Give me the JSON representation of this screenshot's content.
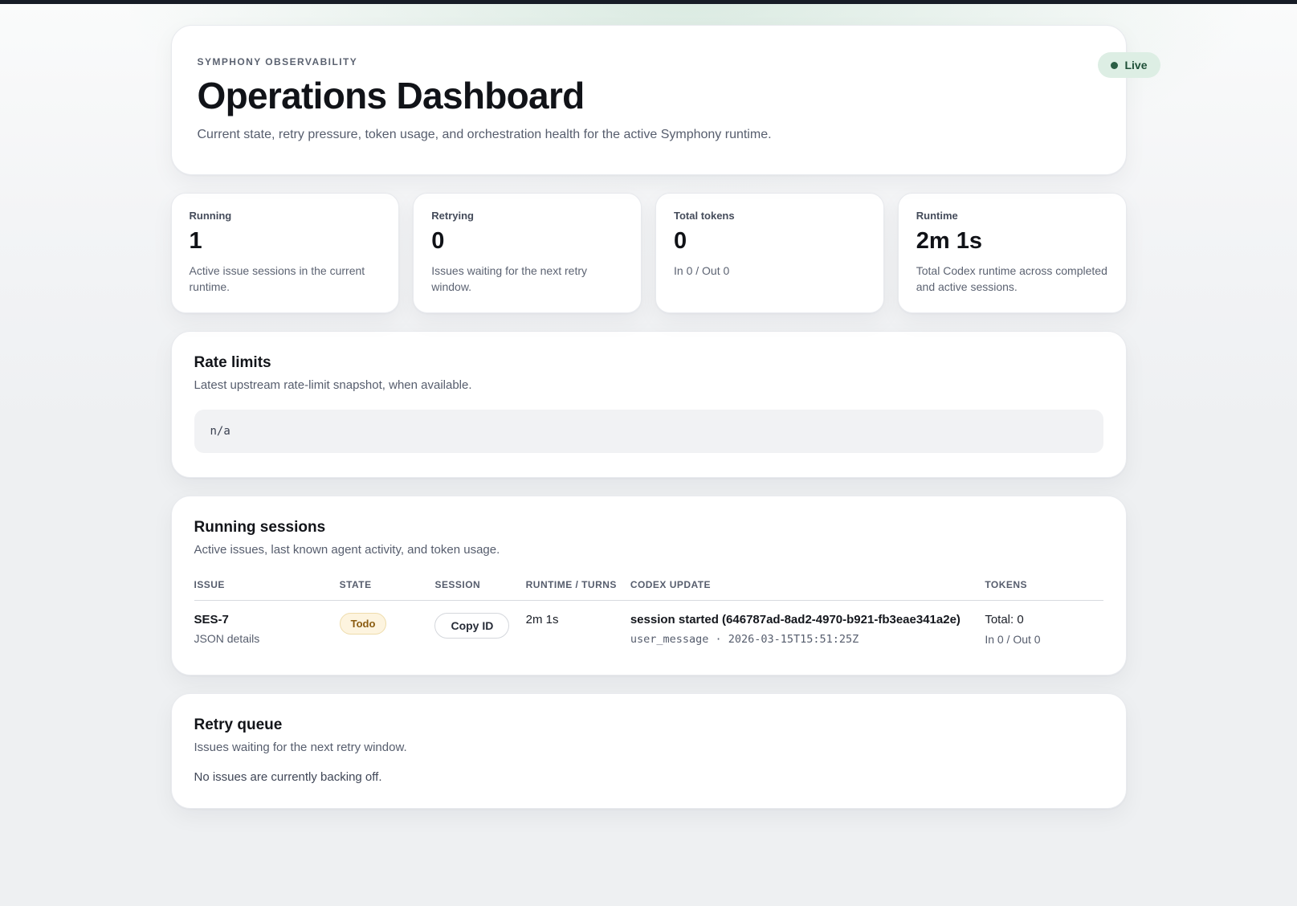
{
  "page": {
    "eyebrow": "SYMPHONY OBSERVABILITY",
    "title": "Operations Dashboard",
    "subtitle": "Current state, retry pressure, token usage, and orchestration health for the active Symphony runtime.",
    "live_badge": "Live"
  },
  "stats": [
    {
      "label": "Running",
      "value": "1",
      "desc": "Active issue sessions in the current runtime."
    },
    {
      "label": "Retrying",
      "value": "0",
      "desc": "Issues waiting for the next retry window."
    },
    {
      "label": "Total tokens",
      "value": "0",
      "desc": "In 0 / Out 0"
    },
    {
      "label": "Runtime",
      "value": "2m 1s",
      "desc": "Total Codex runtime across completed and active sessions."
    }
  ],
  "rate_limits": {
    "title": "Rate limits",
    "subtitle": "Latest upstream rate-limit snapshot, when available.",
    "value": "n/a"
  },
  "sessions": {
    "title": "Running sessions",
    "subtitle": "Active issues, last known agent activity, and token usage.",
    "columns": {
      "issue": "ISSUE",
      "state": "STATE",
      "session": "SESSION",
      "runtime": "RUNTIME / TURNS",
      "codex": "CODEX UPDATE",
      "tokens": "TOKENS"
    },
    "rows": [
      {
        "issue": "SES-7",
        "details_label": "JSON details",
        "state": "Todo",
        "session_button": "Copy ID",
        "runtime": "2m 1s",
        "codex_title": "session started (646787ad-8ad2-4970-b921-fb3eae341a2e)",
        "codex_meta": "user_message · 2026-03-15T15:51:25Z",
        "tokens_total": "Total: 0",
        "tokens_detail": "In 0 / Out 0"
      }
    ]
  },
  "retry_queue": {
    "title": "Retry queue",
    "subtitle": "Issues waiting for the next retry window.",
    "empty_message": "No issues are currently backing off."
  },
  "colors": {
    "live_bg": "#ddeee4",
    "live_text": "#1f5038",
    "todo_bg": "#fdf4df",
    "todo_border": "#eedcab",
    "todo_text": "#8a5c10",
    "page_bg": "#eef0f2",
    "top_strip": "#171c26"
  }
}
